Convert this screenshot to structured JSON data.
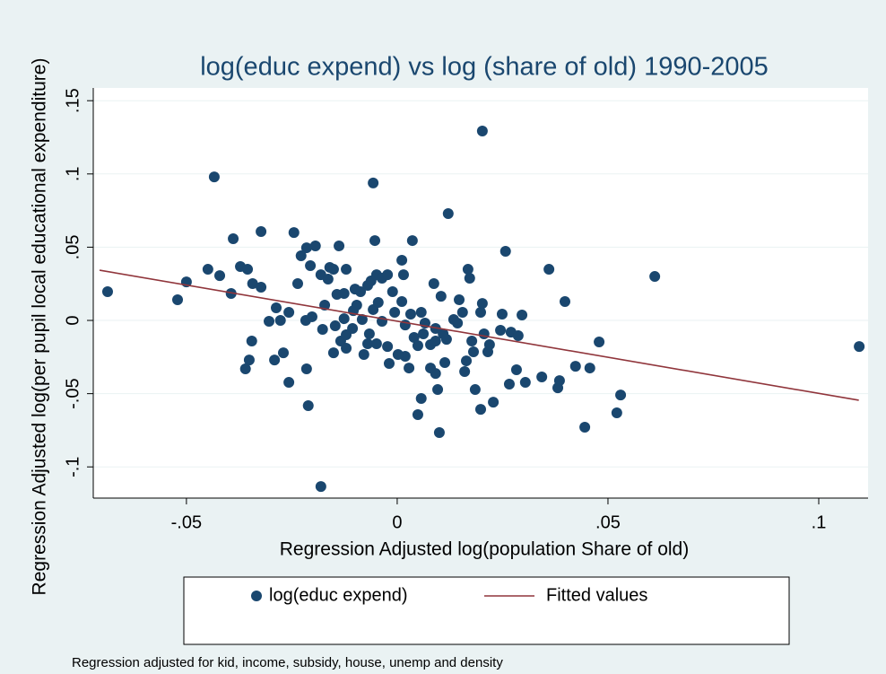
{
  "chart_data": {
    "type": "scatter",
    "title": "log(educ expend) vs log (share of old) 1990-2005",
    "x_label": "Regression Adjusted log(population Share of old)",
    "y_label": "Regression Adjusted log(per pupil local educational expenditure)",
    "note": "Regression adjusted for kid, income, subsidy, house, unemp and density",
    "xlim": [
      -0.0721,
      0.1117
    ],
    "ylim": [
      -0.1213,
      0.1587
    ],
    "xticks": [
      {
        "value": -0.05,
        "label": "-.05"
      },
      0,
      {
        "value": 0.05,
        "label": ".05"
      },
      {
        "value": 0.1,
        "label": ".1"
      }
    ],
    "yticks": [
      {
        "value": -0.1,
        "label": "-.1"
      },
      {
        "value": -0.05,
        "label": "-.05"
      },
      0,
      {
        "value": 0.05,
        "label": ".05"
      },
      {
        "value": 0.1,
        "label": ".1"
      },
      {
        "value": 0.15,
        "label": ".15"
      }
    ],
    "grid": true,
    "series": [
      {
        "name": "log(educ expend)",
        "type": "scatter",
        "color": "#1a476f",
        "x": [
          -0.0687,
          -0.0521,
          -0.05,
          -0.0434,
          -0.0449,
          -0.0421,
          -0.0389,
          -0.0394,
          -0.0372,
          -0.0355,
          -0.036,
          -0.0345,
          -0.0343,
          -0.0323,
          -0.0323,
          -0.0351,
          -0.0291,
          -0.027,
          -0.0257,
          -0.0287,
          -0.0277,
          -0.0245,
          -0.0236,
          -0.0257,
          -0.0228,
          -0.0215,
          -0.0215,
          -0.0211,
          -0.0217,
          -0.0194,
          -0.0202,
          -0.0181,
          -0.0164,
          -0.0177,
          -0.016,
          -0.0151,
          -0.0138,
          -0.0143,
          -0.0151,
          -0.0147,
          -0.0134,
          -0.0121,
          -0.0126,
          -0.0126,
          -0.0121,
          -0.0121,
          -0.0181,
          -0.0104,
          -0.0106,
          -0.0096,
          -0.0087,
          -0.0083,
          -0.0079,
          -0.007,
          -0.007,
          -0.0066,
          -0.0062,
          -0.0057,
          -0.0053,
          -0.0049,
          -0.0057,
          -0.0049,
          -0.0045,
          -0.0036,
          -0.0036,
          -0.0023,
          -0.0023,
          -0.0019,
          -0.0011,
          -0.0006,
          0.0011,
          0.0015,
          0.0011,
          0.0019,
          0.0019,
          0.0028,
          0.0036,
          0.0032,
          0.004,
          0.0049,
          0.0049,
          0.0057,
          0.0057,
          0.0062,
          0.0079,
          0.0087,
          0.0091,
          0.0091,
          0.0091,
          0.0096,
          0.01,
          0.0104,
          0.0109,
          0.0113,
          0.0121,
          0.0117,
          0.0134,
          0.0147,
          0.0155,
          0.0164,
          0.016,
          0.0168,
          0.0172,
          0.0177,
          0.0181,
          0.0185,
          0.0198,
          0.0202,
          0.0202,
          0.0198,
          0.0206,
          0.0215,
          0.0219,
          0.0228,
          0.0245,
          0.0249,
          0.0257,
          0.0266,
          0.027,
          0.0283,
          0.0287,
          0.0296,
          0.0304,
          0.0343,
          0.036,
          0.0381,
          0.0385,
          0.0398,
          0.0423,
          0.0445,
          0.0457,
          0.0479,
          0.0521,
          0.053,
          0.0611,
          0.1096,
          -0.0304,
          -0.0172,
          -0.01,
          0.0002,
          0.0143,
          0.0079,
          0.0066,
          -0.0206
        ],
        "values": [
          0.0196,
          0.0141,
          0.0263,
          0.098,
          0.0349,
          0.0306,
          0.0558,
          0.0184,
          0.0368,
          0.0349,
          -0.0331,
          -0.0141,
          0.0251,
          0.0607,
          0.0227,
          -0.027,
          -0.027,
          -0.0221,
          -0.0423,
          0.0086,
          0.0,
          0.06,
          0.0251,
          0.0055,
          0.0441,
          0.0496,
          -0.0331,
          -0.0582,
          0.0,
          0.0509,
          0.0025,
          0.0312,
          0.0282,
          -0.0061,
          0.0362,
          0.0349,
          0.0509,
          0.0178,
          -0.0221,
          -0.0037,
          -0.0141,
          0.0349,
          0.0184,
          0.0012,
          -0.0098,
          -0.019,
          -0.1134,
          0.0067,
          -0.0055,
          0.0104,
          0.0196,
          0.0006,
          -0.0233,
          0.0239,
          -0.0159,
          -0.0092,
          0.027,
          0.0938,
          0.0545,
          0.0312,
          0.0074,
          -0.0159,
          0.0123,
          -0.0006,
          0.0288,
          0.0312,
          -0.0178,
          -0.0294,
          0.0196,
          0.0055,
          0.0411,
          0.0312,
          0.0129,
          -0.0031,
          -0.0245,
          -0.0325,
          0.0545,
          0.0043,
          -0.0116,
          -0.0172,
          -0.0643,
          -0.0533,
          0.0055,
          -0.0092,
          -0.0165,
          0.0251,
          -0.0055,
          -0.0141,
          -0.0362,
          -0.0472,
          -0.0766,
          0.0165,
          -0.0092,
          -0.0288,
          0.0729,
          -0.0129,
          0.0006,
          0.0141,
          0.0055,
          -0.0276,
          -0.0349,
          0.0349,
          0.0288,
          -0.0141,
          -0.0214,
          -0.0472,
          0.0055,
          0.0116,
          0.1293,
          -0.0607,
          -0.0092,
          -0.0214,
          -0.0165,
          -0.0558,
          -0.0067,
          0.0043,
          0.0472,
          -0.0435,
          -0.008,
          -0.0337,
          -0.0104,
          0.0037,
          -0.0423,
          -0.0386,
          0.0349,
          -0.046,
          -0.0411,
          0.0129,
          -0.0313,
          -0.0729,
          -0.0325,
          -0.0147,
          -0.0631,
          -0.0509,
          0.03,
          -0.0178,
          -0.0006,
          0.0104,
          0.0214,
          -0.0233,
          -0.0018,
          -0.0325,
          -0.0018,
          0.0374
        ]
      },
      {
        "name": "Fitted values",
        "type": "line",
        "color": "#90353b",
        "x": [
          -0.0706,
          0.1095
        ],
        "values": [
          0.0343,
          -0.0545
        ]
      }
    ]
  }
}
